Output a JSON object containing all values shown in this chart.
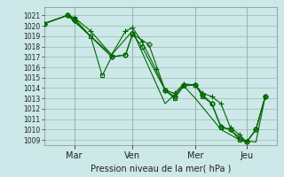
{
  "background_color": "#cce8e8",
  "grid_color": "#99bbaa",
  "line_color": "#006600",
  "xlabel": "Pression niveau de la mer( hPa )",
  "ylim": [
    1008.5,
    1021.8
  ],
  "yticks": [
    1009,
    1010,
    1011,
    1012,
    1013,
    1014,
    1015,
    1016,
    1017,
    1018,
    1019,
    1020,
    1021
  ],
  "xtick_labels": [
    "Mar",
    "Ven",
    "Mer",
    "Jeu"
  ],
  "xtick_positions": [
    0.13,
    0.38,
    0.65,
    0.87
  ],
  "vline_positions": [
    0.13,
    0.38,
    0.65,
    0.87
  ],
  "series": [
    {
      "x": [
        0.0,
        0.1,
        0.13,
        0.2,
        0.29,
        0.35,
        0.38,
        0.42,
        0.48,
        0.52,
        0.56,
        0.6,
        0.65,
        0.68,
        0.72,
        0.76,
        0.8,
        0.84,
        0.87,
        0.91,
        0.95
      ],
      "y": [
        1020.2,
        1021.0,
        1020.8,
        1019.5,
        1017.2,
        1019.5,
        1019.8,
        1018.5,
        1015.8,
        1013.8,
        1013.5,
        1014.4,
        1014.3,
        1013.5,
        1013.2,
        1012.5,
        1010.2,
        1009.5,
        1008.8,
        1010.0,
        1013.2
      ],
      "marker": "+"
    },
    {
      "x": [
        0.0,
        0.1,
        0.13,
        0.29,
        0.35,
        0.38,
        0.45,
        0.52,
        0.56,
        0.6,
        0.65,
        0.68,
        0.72,
        0.76,
        0.8,
        0.84,
        0.87,
        0.91,
        0.95
      ],
      "y": [
        1020.2,
        1021.0,
        1020.5,
        1017.0,
        1017.2,
        1019.2,
        1018.2,
        1013.8,
        1013.2,
        1014.3,
        1014.3,
        1013.4,
        1012.5,
        1010.3,
        1010.0,
        1009.2,
        1008.8,
        1010.0,
        1013.2
      ],
      "marker": "D"
    },
    {
      "x": [
        0.0,
        0.1,
        0.13,
        0.2,
        0.25,
        0.29,
        0.35,
        0.38,
        0.42,
        0.52,
        0.56,
        0.6,
        0.65,
        0.68,
        0.72,
        0.76,
        0.8,
        0.84,
        0.87,
        0.91,
        0.95
      ],
      "y": [
        1020.2,
        1021.0,
        1020.7,
        1019.0,
        1015.2,
        1017.0,
        1017.2,
        1019.2,
        1018.0,
        1013.8,
        1013.0,
        1014.2,
        1014.3,
        1013.2,
        1012.5,
        1010.2,
        1010.0,
        1009.0,
        1008.8,
        1010.0,
        1013.2
      ],
      "marker": "s"
    },
    {
      "x": [
        0.0,
        0.1,
        0.29,
        0.38,
        0.52,
        0.6,
        0.65,
        0.76,
        0.84,
        0.91,
        0.95
      ],
      "y": [
        1020.2,
        1021.0,
        1017.2,
        1019.5,
        1012.5,
        1014.2,
        1013.0,
        1010.0,
        1009.0,
        1008.8,
        1013.2
      ],
      "marker": "None"
    }
  ]
}
